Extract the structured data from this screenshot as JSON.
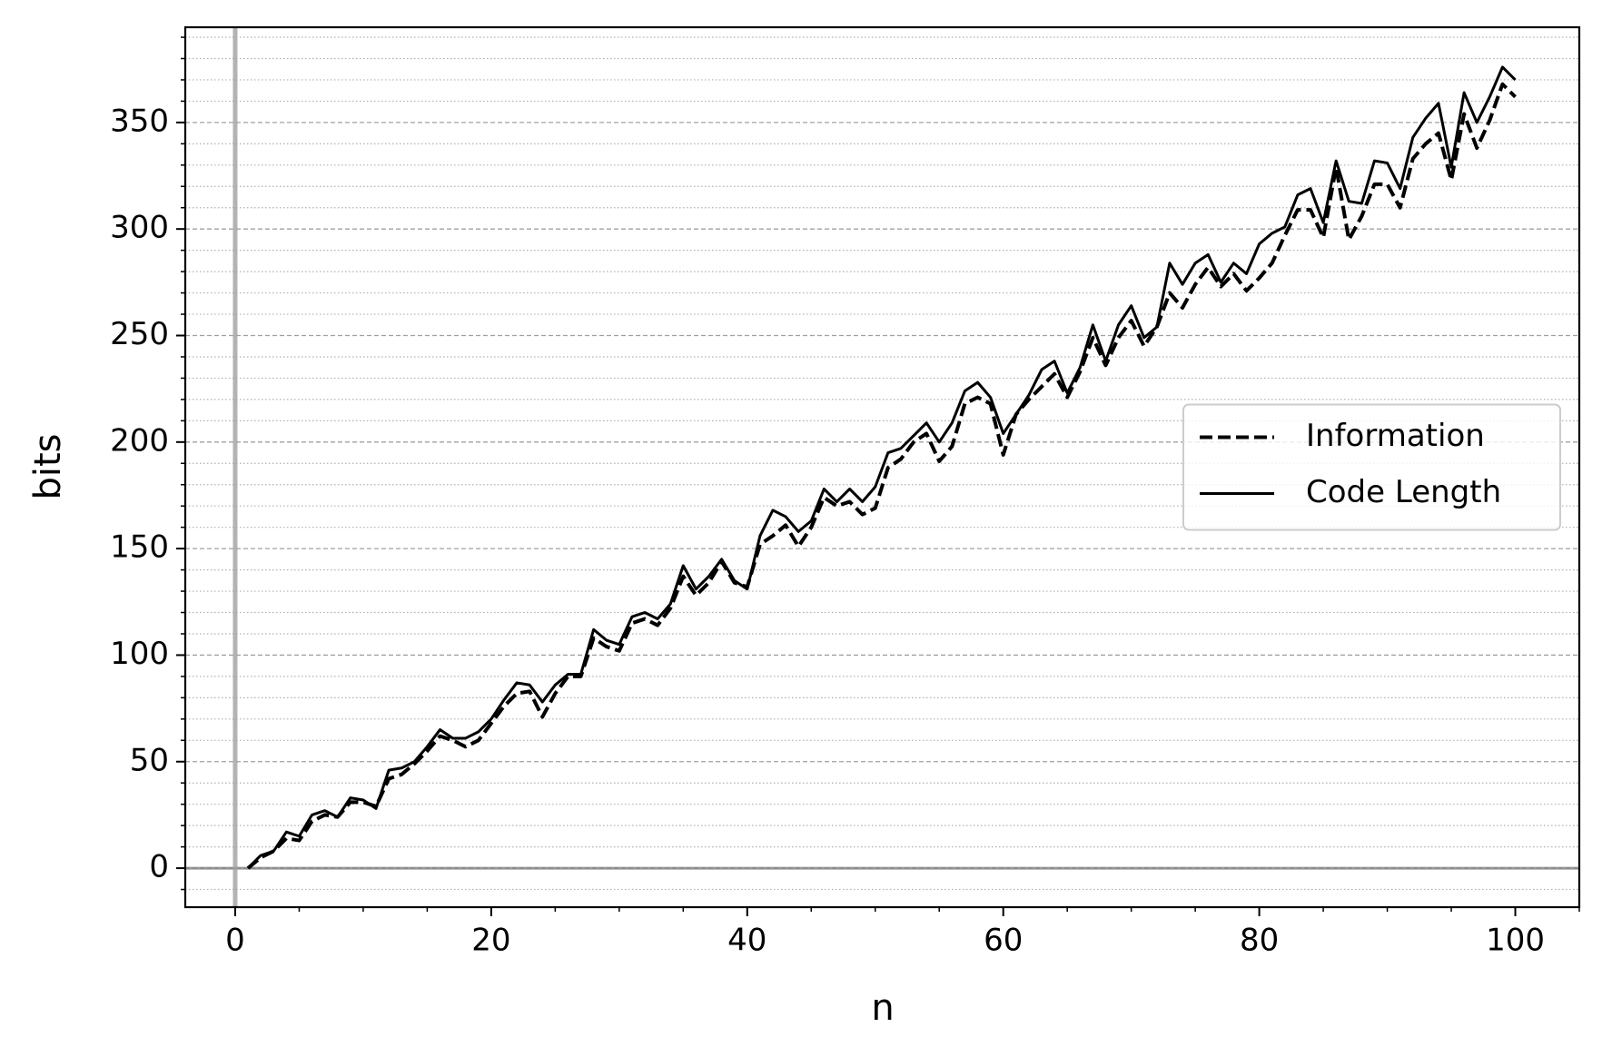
{
  "chart_data": {
    "type": "line",
    "xlabel": "n",
    "ylabel": "bits",
    "x": [
      1,
      2,
      3,
      4,
      5,
      6,
      7,
      8,
      9,
      10,
      11,
      12,
      13,
      14,
      15,
      16,
      17,
      18,
      19,
      20,
      21,
      22,
      23,
      24,
      25,
      26,
      27,
      28,
      29,
      30,
      31,
      32,
      33,
      34,
      35,
      36,
      37,
      38,
      39,
      40,
      41,
      42,
      43,
      44,
      45,
      46,
      47,
      48,
      49,
      50,
      51,
      52,
      53,
      54,
      55,
      56,
      57,
      58,
      59,
      60,
      61,
      62,
      63,
      64,
      65,
      66,
      67,
      68,
      69,
      70,
      71,
      72,
      73,
      74,
      75,
      76,
      77,
      78,
      79,
      80,
      81,
      82,
      83,
      84,
      85,
      86,
      87,
      88,
      89,
      90,
      91,
      92,
      93,
      94,
      95,
      96,
      97,
      98,
      99,
      100
    ],
    "series": [
      {
        "name": "Information",
        "color": "#000000",
        "linestyle": "dashed",
        "values": [
          0,
          5,
          8,
          14,
          13,
          22,
          25,
          24,
          31,
          31,
          29,
          42,
          44,
          49,
          55,
          62,
          60,
          57,
          60,
          68,
          76,
          82,
          83,
          71,
          82,
          90,
          90,
          108,
          104,
          102,
          115,
          117,
          114,
          122,
          137,
          128,
          134,
          144,
          134,
          132,
          152,
          156,
          161,
          151,
          160,
          174,
          170,
          172,
          166,
          169,
          188,
          192,
          200,
          204,
          191,
          198,
          218,
          221,
          218,
          194,
          213,
          220,
          226,
          232,
          221,
          233,
          249,
          236,
          249,
          257,
          245,
          254,
          270,
          263,
          274,
          282,
          273,
          279,
          271,
          277,
          284,
          297,
          309,
          309,
          296,
          329,
          295,
          306,
          321,
          321,
          310,
          333,
          340,
          345,
          323,
          354,
          338,
          351,
          368,
          362
        ]
      },
      {
        "name": "Code Length",
        "color": "#000000",
        "linestyle": "solid",
        "values": [
          0,
          6,
          8,
          17,
          15,
          25,
          27,
          24,
          33,
          32,
          28,
          46,
          47,
          50,
          57,
          65,
          61,
          61,
          64,
          70,
          79,
          87,
          86,
          78,
          86,
          91,
          91,
          112,
          107,
          105,
          118,
          120,
          117,
          124,
          142,
          131,
          137,
          145,
          135,
          131,
          156,
          168,
          165,
          158,
          163,
          178,
          172,
          178,
          172,
          179,
          195,
          197,
          203,
          209,
          200,
          209,
          224,
          228,
          221,
          204,
          213,
          222,
          234,
          238,
          223,
          235,
          255,
          238,
          255,
          264,
          249,
          254,
          284,
          274,
          284,
          288,
          275,
          284,
          279,
          293,
          298,
          301,
          316,
          319,
          303,
          332,
          313,
          312,
          332,
          331,
          319,
          343,
          352,
          359,
          329,
          364,
          350,
          362,
          376,
          370
        ]
      }
    ],
    "xlim": [
      -3.9,
      105
    ],
    "ylim": [
      -18.3,
      394.7
    ],
    "xticks": [
      0,
      20,
      40,
      60,
      80,
      100
    ],
    "yticks": [
      0,
      50,
      100,
      150,
      200,
      250,
      300,
      350
    ],
    "xticks_minor": [
      5,
      10,
      15,
      25,
      30,
      35,
      45,
      50,
      55,
      65,
      70,
      75,
      85,
      90,
      95,
      105
    ],
    "yticks_minor": [
      -10,
      10,
      20,
      30,
      40,
      60,
      70,
      80,
      90,
      110,
      120,
      130,
      140,
      160,
      170,
      180,
      190,
      210,
      220,
      230,
      240,
      260,
      270,
      280,
      290,
      310,
      320,
      330,
      340,
      360,
      370,
      380,
      390
    ],
    "grid": true,
    "hlines": [
      0
    ],
    "vlines": [
      0
    ],
    "legend": "center right"
  }
}
